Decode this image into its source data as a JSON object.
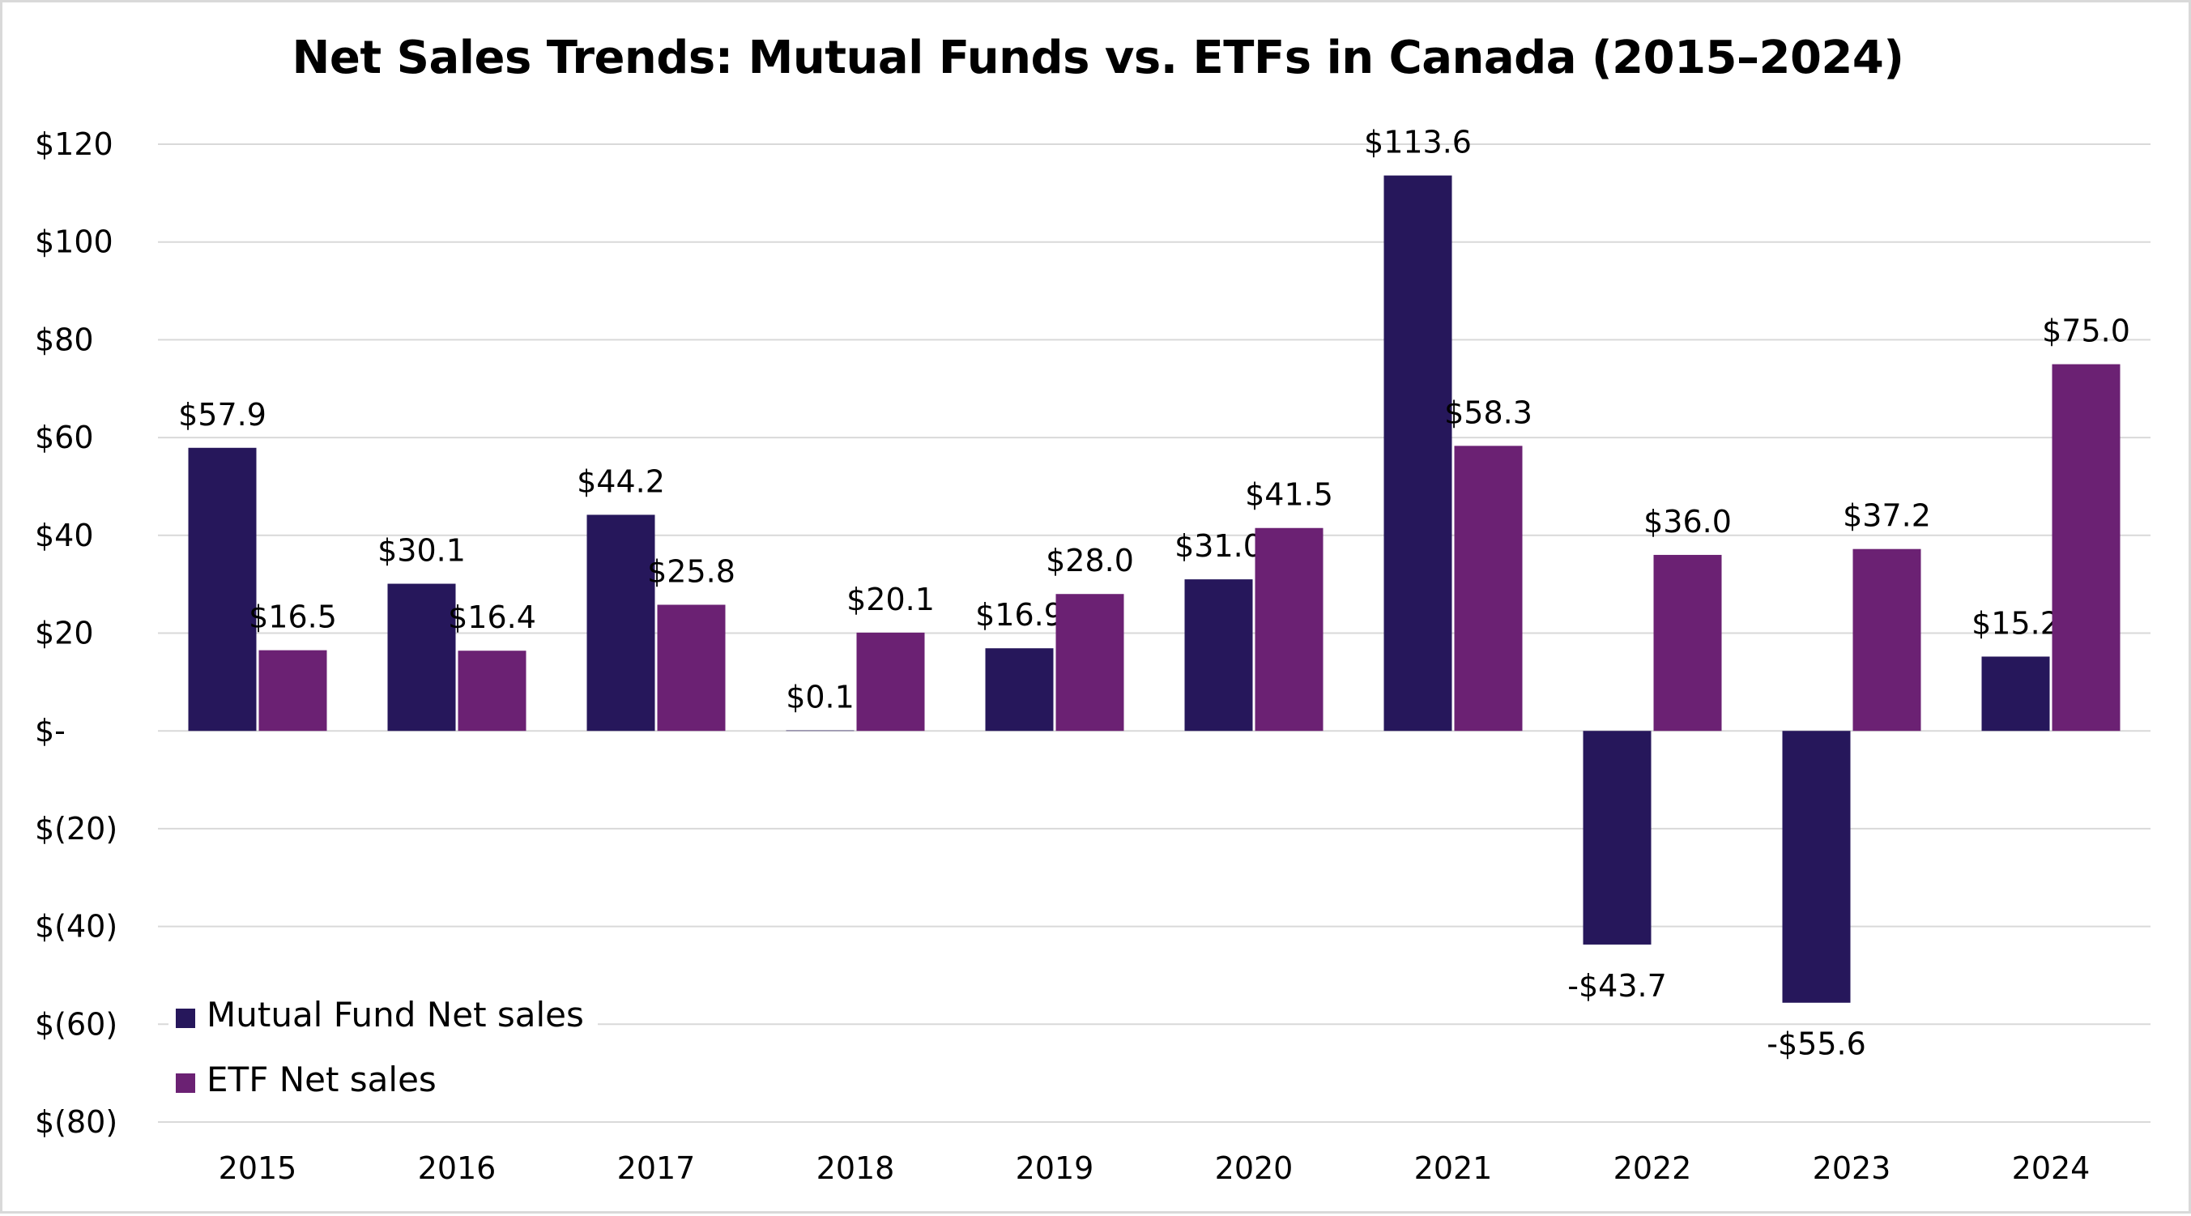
{
  "chart_data": {
    "type": "bar",
    "title": "Net Sales Trends: Mutual Funds vs. ETFs in Canada (2015–2024)",
    "xlabel": "",
    "ylabel": "",
    "categories": [
      "2015",
      "2016",
      "2017",
      "2018",
      "2019",
      "2020",
      "2021",
      "2022",
      "2023",
      "2024"
    ],
    "series": [
      {
        "name": "Mutual Fund Net sales",
        "color": "#26175b",
        "values": [
          57.9,
          30.1,
          44.2,
          0.1,
          16.9,
          31.0,
          113.6,
          -43.7,
          -55.6,
          15.2
        ],
        "labels": [
          "$57.9",
          "$30.1",
          "$44.2",
          "$0.1",
          "$16.9",
          "$31.0",
          "$113.6",
          "-$43.7",
          "-$55.6",
          "$15.2"
        ]
      },
      {
        "name": "ETF Net sales",
        "color": "#6b2173",
        "values": [
          16.5,
          16.4,
          25.8,
          20.1,
          28.0,
          41.5,
          58.3,
          36.0,
          37.2,
          75.0
        ],
        "labels": [
          "$16.5",
          "$16.4",
          "$25.8",
          "$20.1",
          "$28.0",
          "$41.5",
          "$58.3",
          "$36.0",
          "$37.2",
          "$75.0"
        ]
      }
    ],
    "ylim": [
      -80,
      120
    ],
    "yticks": [
      120,
      100,
      80,
      60,
      40,
      20,
      0,
      -20,
      -40,
      -60,
      -80
    ],
    "ytick_labels": [
      "$120",
      "$100",
      "$80",
      "$60",
      "$40",
      "$20",
      "$-",
      "$(20)",
      "$(40)",
      "$(60)",
      "$(80)"
    ],
    "grid": true,
    "legend_position": "bottom-left",
    "gridline_color": "#d9d9d9"
  }
}
